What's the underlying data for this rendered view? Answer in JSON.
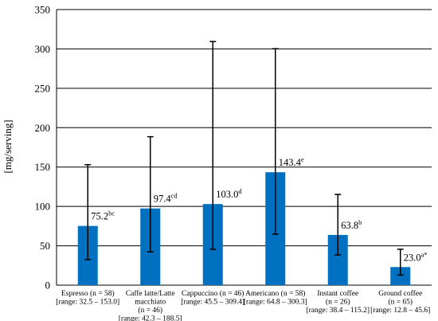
{
  "chart_data": {
    "type": "bar",
    "title": "",
    "xlabel": "",
    "ylabel": "[mg/serving]",
    "ylim": [
      0,
      350
    ],
    "yticks": [
      0,
      50,
      100,
      150,
      200,
      250,
      300,
      350
    ],
    "grid": "horizontal",
    "legend": "none",
    "bar_color": "#0070C0",
    "categories": [
      [
        "Espresso (n = 58)",
        "[range: 32.5 – 153.0]"
      ],
      [
        "Caffe latte/Latte",
        "macchiato",
        "(n = 46)",
        "[range: 42.3 – 188.5]"
      ],
      [
        "Cappuccino (n = 46)",
        "[range: 45.5 – 309.4]"
      ],
      [
        "Americano (n = 58)",
        "[range: 64.8 – 300.3]"
      ],
      [
        "Instant coffee",
        "(n = 26)",
        "[range: 38.4 – 115.2]"
      ],
      [
        "Ground coffee",
        "(n = 65)",
        "[range: 12.8 – 45.6]"
      ]
    ],
    "values": [
      75.2,
      97.4,
      103.0,
      143.4,
      63.8,
      23.0
    ],
    "error_low": [
      32.5,
      42.3,
      45.5,
      64.8,
      38.4,
      12.8
    ],
    "error_high": [
      153.0,
      188.5,
      309.4,
      300.3,
      115.2,
      45.6
    ],
    "data_labels": [
      {
        "value": "75.2",
        "sup": "bc"
      },
      {
        "value": "97.4",
        "sup": "cd"
      },
      {
        "value": "103.0",
        "sup": "d"
      },
      {
        "value": "143.4",
        "sup": "e"
      },
      {
        "value": "63.8",
        "sup": "b"
      },
      {
        "value": "23.0",
        "sup": "a*"
      }
    ]
  }
}
